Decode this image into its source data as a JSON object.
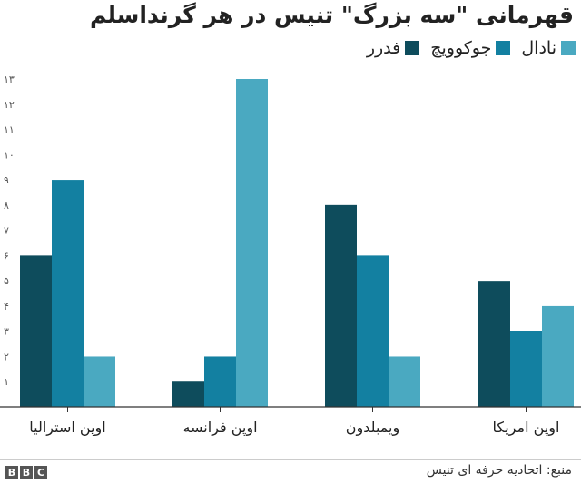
{
  "chart_data": {
    "type": "bar",
    "title": "قهرمانی \"سه بزرگ\" تنیس در هر گرنداسلم",
    "categories": [
      "اوپن استرالیا",
      "اوپن فرانسه",
      "ویمبلدون",
      "اوپن امریکا"
    ],
    "series": [
      {
        "name": "فدرر",
        "color": "#0e4c5c",
        "values": [
          6,
          1,
          8,
          5
        ]
      },
      {
        "name": "جوکوویچ",
        "color": "#1380a1",
        "values": [
          9,
          2,
          6,
          3
        ]
      },
      {
        "name": "نادال",
        "color": "#4aa9c1",
        "values": [
          2,
          13,
          2,
          4
        ]
      }
    ],
    "ylim": [
      0,
      13
    ],
    "yticks": [
      "۱",
      "۲",
      "۳",
      "۴",
      "۵",
      "۶",
      "۷",
      "۸",
      "۹",
      "۱۰",
      "۱۱",
      "۱۲",
      "۱۳"
    ],
    "xlabel": "",
    "ylabel": "",
    "grid": false
  },
  "legend": {
    "items": [
      {
        "label": "نادال",
        "color": "#4aa9c1"
      },
      {
        "label": "جوکوویچ",
        "color": "#1380a1"
      },
      {
        "label": "فدرر",
        "color": "#0e4c5c"
      }
    ]
  },
  "footer": {
    "source": "منبع: اتحادیه حرفه ای تنیس",
    "logo": [
      "B",
      "B",
      "C"
    ]
  }
}
